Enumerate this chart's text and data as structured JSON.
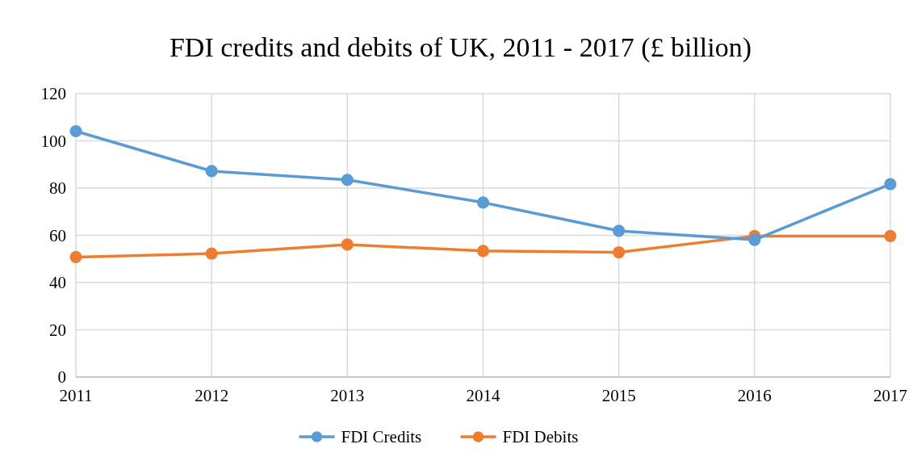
{
  "chart_data": {
    "type": "line",
    "title": "FDI credits and debits of UK, 2011 - 2017 (£ billion)",
    "categories": [
      "2011",
      "2012",
      "2013",
      "2014",
      "2015",
      "2016",
      "2017"
    ],
    "series": [
      {
        "name": "FDI Credits",
        "color": "#5b9bd5",
        "values": [
          104.1,
          87.2,
          83.5,
          73.9,
          61.9,
          58.1,
          81.7
        ]
      },
      {
        "name": "FDI Debits",
        "color": "#ed7d31",
        "values": [
          50.8,
          52.3,
          56.1,
          53.4,
          52.8,
          59.7,
          59.7
        ]
      }
    ],
    "ylim": [
      0,
      120
    ],
    "yticks": [
      0,
      20,
      40,
      60,
      80,
      100,
      120
    ],
    "grid": true,
    "legend": "bottom",
    "marker": "circle",
    "line_style": "solid"
  }
}
